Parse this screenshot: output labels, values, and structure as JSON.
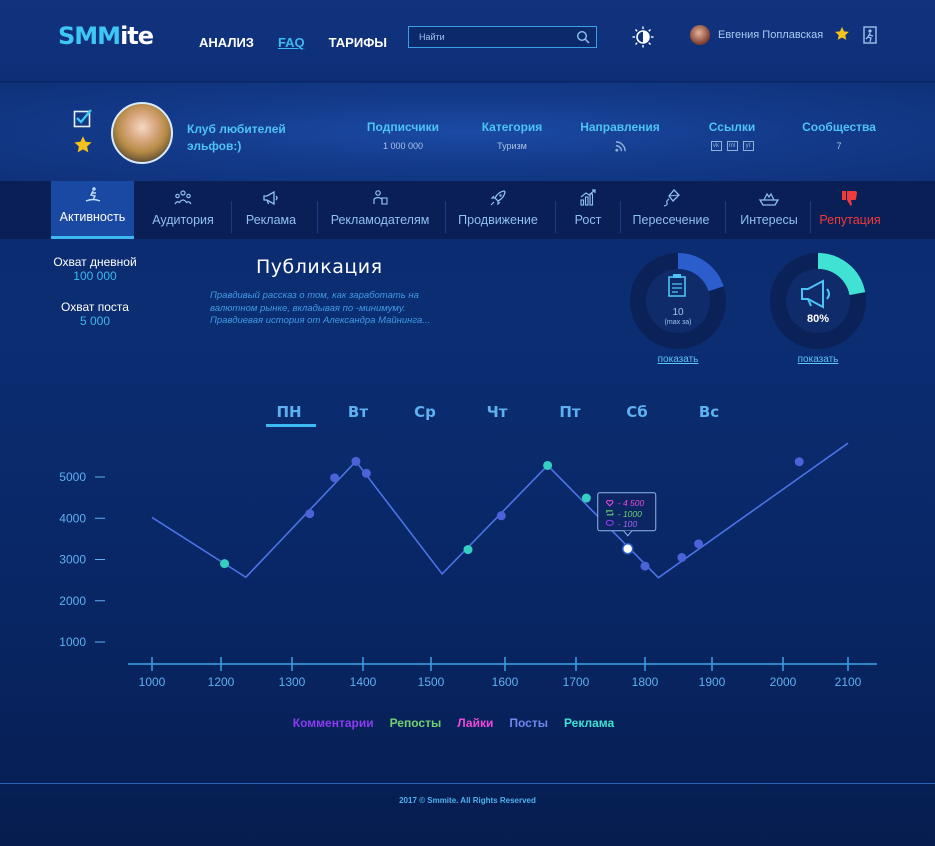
{
  "header": {
    "logo_part1": "SMM",
    "logo_part2": "ite",
    "nav": [
      "АНАЛИЗ",
      "FAQ",
      "ТАРИФЫ"
    ],
    "search_placeholder": "Найти",
    "user_name": "Евгения Поплавская"
  },
  "profile": {
    "name": "Клуб любителей эльфов:)",
    "stats": {
      "subscribers_label": "Подписчики",
      "subscribers_value": "1 000 000",
      "category_label": "Категория",
      "category_value": "Туризм",
      "directions_label": "Направления",
      "links_label": "Ссылки",
      "links": [
        "vk",
        "ml",
        "yt"
      ],
      "communities_label": "Сообщества",
      "communities_value": "7"
    }
  },
  "tabs": [
    "Активность",
    "Аудитория",
    "Реклама",
    "Рекламодателям",
    "Продвижение",
    "Рост",
    "Пересечение",
    "Интересы",
    "Репутация"
  ],
  "metrics": {
    "daily_label": "Охват дневной",
    "daily_value": "100 000",
    "post_label": "Охват поста",
    "post_value": "5 000"
  },
  "publication": {
    "title": "Публикация",
    "description": "Правдивый рассказ о том, как заработать на валютном рынке, вкладывая по -минимуму. Правдиевая история от Александра Майнинга..."
  },
  "donuts": [
    {
      "value_text": "10",
      "sub_text": "(max за)",
      "link": "показать",
      "fraction": 0.2
    },
    {
      "value_text": "80%",
      "link": "показать",
      "fraction": 0.22
    }
  ],
  "chart_data": {
    "type": "line",
    "days": [
      "ПН",
      "Вт",
      "Ср",
      "Чт",
      "Пт",
      "Сб",
      "Вс"
    ],
    "active_day": "ПН",
    "x_ticks": [
      1000,
      1200,
      1300,
      1400,
      1500,
      1600,
      1700,
      1800,
      1900,
      2000,
      2100
    ],
    "y_ticks": [
      1000,
      2000,
      3000,
      4000,
      5000
    ],
    "line": [
      [
        1000,
        4020
      ],
      [
        1235,
        2570
      ],
      [
        1390,
        5380
      ],
      [
        1515,
        2650
      ],
      [
        1660,
        5280
      ],
      [
        1820,
        2560
      ],
      [
        2100,
        5820
      ]
    ],
    "points": [
      {
        "x": 1205,
        "y": 2900,
        "kind": "ad"
      },
      {
        "x": 1325,
        "y": 4110,
        "kind": "post"
      },
      {
        "x": 1360,
        "y": 4980,
        "kind": "post"
      },
      {
        "x": 1390,
        "y": 5380,
        "kind": "post"
      },
      {
        "x": 1405,
        "y": 5090,
        "kind": "post"
      },
      {
        "x": 1550,
        "y": 3240,
        "kind": "ad"
      },
      {
        "x": 1595,
        "y": 4060,
        "kind": "post"
      },
      {
        "x": 1660,
        "y": 5280,
        "kind": "ad"
      },
      {
        "x": 1715,
        "y": 4490,
        "kind": "ad"
      },
      {
        "x": 1775,
        "y": 3260,
        "kind": "selected"
      },
      {
        "x": 1800,
        "y": 2840,
        "kind": "post"
      },
      {
        "x": 1855,
        "y": 3050,
        "kind": "post"
      },
      {
        "x": 1880,
        "y": 3380,
        "kind": "post"
      },
      {
        "x": 2025,
        "y": 5370,
        "kind": "post"
      }
    ],
    "tooltip": {
      "likes": "- 4 500",
      "reposts": "- 1000",
      "comments": "- 100"
    },
    "colors": {
      "line": "#4c73e6",
      "post": "#4a63d8",
      "ad": "#33d0c2",
      "axis": "#3aa3e6"
    }
  },
  "legend": [
    {
      "label": "Комментарии",
      "color": "#8b3cf0"
    },
    {
      "label": "Репосты",
      "color": "#6fd46f"
    },
    {
      "label": "Лайки",
      "color": "#f04ad8"
    },
    {
      "label": "Посты",
      "color": "#6f88ee"
    },
    {
      "label": "Реклама",
      "color": "#3fe2d3"
    }
  ],
  "footer": "2017 © Smmite. All Rights Reserved"
}
